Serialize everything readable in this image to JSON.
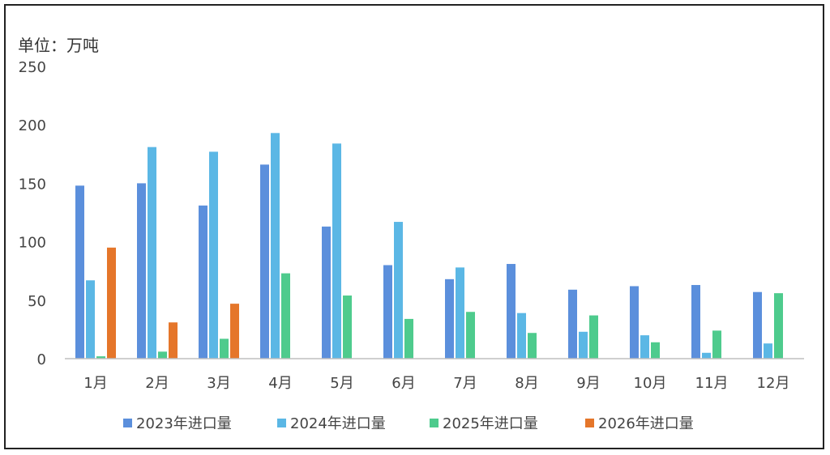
{
  "chart_data": {
    "type": "bar",
    "unit_label": "单位：万吨",
    "categories": [
      "1月",
      "2月",
      "3月",
      "4月",
      "5月",
      "6月",
      "7月",
      "8月",
      "9月",
      "10月",
      "11月",
      "12月"
    ],
    "y_ticks": [
      "0",
      "50",
      "100",
      "150",
      "200",
      "250"
    ],
    "ylim": [
      0,
      250
    ],
    "grid": false,
    "legend_position": "bottom",
    "series": [
      {
        "name": "2023年进口量",
        "color": "#5b8fdc",
        "values": [
          148,
          150,
          131,
          166,
          113,
          80,
          68,
          81,
          59,
          62,
          63,
          57
        ]
      },
      {
        "name": "2024年进口量",
        "color": "#5bb7e5",
        "values": [
          67,
          181,
          177,
          193,
          184,
          117,
          78,
          39,
          23,
          20,
          5,
          13
        ]
      },
      {
        "name": "2025年进口量",
        "color": "#4ecb8d",
        "values": [
          2,
          6,
          17,
          73,
          54,
          34,
          40,
          22,
          37,
          14,
          24,
          56
        ]
      },
      {
        "name": "2026年进口量",
        "color": "#e5762a",
        "values": [
          95,
          31,
          47,
          null,
          null,
          null,
          null,
          null,
          null,
          null,
          null,
          null
        ]
      }
    ]
  }
}
